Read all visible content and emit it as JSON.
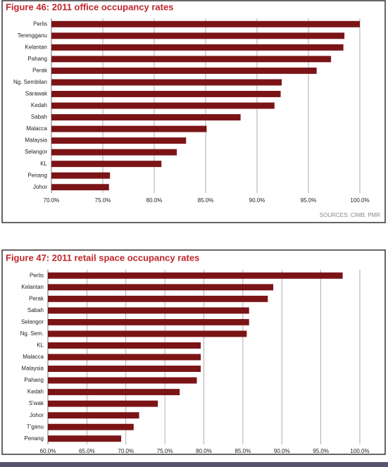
{
  "chart_data": [
    {
      "type": "bar",
      "orientation": "horizontal",
      "title": "Figure 46: 2011 office occupancy rates",
      "source": "SOURCES: CIMB, PMR",
      "categories": [
        "Perlis",
        "Terengganu",
        "Kelantan",
        "Pahang",
        "Perak",
        "Ng. Sembilan",
        "Sarawak",
        "Kedah",
        "Sabah",
        "Malacca",
        "Malaysia",
        "Selangor",
        "KL",
        "Penang",
        "Johor"
      ],
      "values": [
        100.0,
        98.5,
        98.4,
        97.2,
        95.8,
        92.4,
        92.3,
        91.7,
        88.4,
        85.1,
        83.1,
        82.2,
        80.7,
        75.7,
        75.6
      ],
      "color": "#7b1416",
      "xlim": [
        70,
        100
      ],
      "xticks": [
        {
          "value": 70,
          "label": "70.0%"
        },
        {
          "value": 75,
          "label": "75.0%"
        },
        {
          "value": 80,
          "label": "80.0%"
        },
        {
          "value": 85,
          "label": "85.0%"
        },
        {
          "value": 90,
          "label": "90.0%"
        },
        {
          "value": 95,
          "label": "95.0%"
        },
        {
          "value": 100,
          "label": "100.0%"
        }
      ],
      "grid": true
    },
    {
      "type": "bar",
      "orientation": "horizontal",
      "title": "Figure 47: 2011 retail space occupancy rates",
      "categories": [
        "Perlis",
        "Kelantan",
        "Perak",
        "Sabah",
        "Selangor",
        "Ng. Sem.",
        "KL",
        "Malacca",
        "Malaysia",
        "Pahang",
        "Kedah",
        "S'wak",
        "Johor",
        "T'ganu",
        "Penang"
      ],
      "values": [
        97.8,
        88.9,
        88.2,
        85.8,
        85.8,
        85.5,
        79.6,
        79.6,
        79.6,
        79.1,
        76.9,
        74.1,
        71.7,
        71.0,
        69.4
      ],
      "color": "#7b1416",
      "xlim": [
        60,
        100
      ],
      "xticks": [
        {
          "value": 60,
          "label": "60.0%"
        },
        {
          "value": 65,
          "label": "65.0%"
        },
        {
          "value": 70,
          "label": "70.0%"
        },
        {
          "value": 75,
          "label": "75.0%"
        },
        {
          "value": 80,
          "label": "80.0%"
        },
        {
          "value": 85,
          "label": "85.0%"
        },
        {
          "value": 90,
          "label": "90.0%"
        },
        {
          "value": 95,
          "label": "95.0%"
        },
        {
          "value": 100,
          "label": "100.0%"
        }
      ],
      "grid": true
    }
  ]
}
